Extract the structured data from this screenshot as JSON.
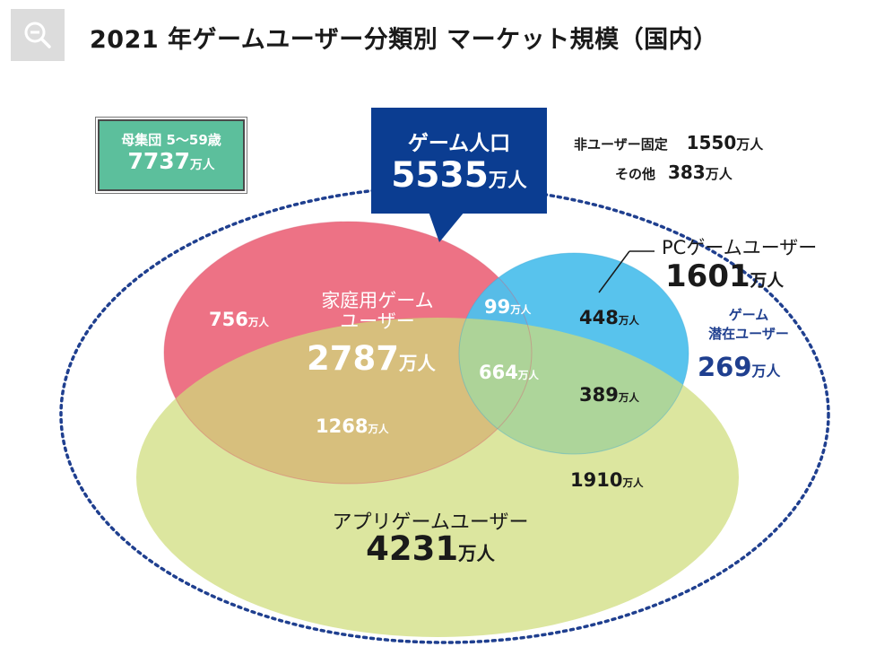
{
  "title": "2021 年ゲームユーザー分類別 マーケット規模（国内）",
  "toolbar": {
    "zoom_icon": "zoom-out-icon"
  },
  "colors": {
    "console": "#ec6a7e",
    "pc": "#4fc0ec",
    "app": "#cfdc7a",
    "population_box": "#5cbf9c",
    "game_population_box": "#0b3d91",
    "dotted_outline": "#1f3f8f"
  },
  "population": {
    "label": "母集団 5～59歳",
    "value": "7737",
    "unit": "万人"
  },
  "game_population": {
    "label": "ゲーム人口",
    "value": "5535",
    "unit": "万人"
  },
  "non_user": {
    "label": "非ユーザー固定",
    "value": "1550",
    "unit": "万人"
  },
  "other": {
    "label": "その他",
    "value": "383",
    "unit": "万人"
  },
  "pc_users": {
    "label": "PCゲームユーザー",
    "value": "1601",
    "unit": "万人"
  },
  "potential": {
    "label_line1": "ゲーム",
    "label_line2": "潜在ユーザー",
    "value": "269",
    "unit": "万人"
  },
  "console_users": {
    "label_line1": "家庭用ゲーム",
    "label_line2": "ユーザー",
    "value": "2787",
    "unit": "万人"
  },
  "app_users": {
    "label": "アプリゲームユーザー",
    "value": "4231",
    "unit": "万人"
  },
  "segments": {
    "console_only": {
      "value": "756",
      "unit": "万人"
    },
    "console_pc": {
      "value": "99",
      "unit": "万人"
    },
    "pc_only": {
      "value": "448",
      "unit": "万人"
    },
    "all_three": {
      "value": "664",
      "unit": "万人"
    },
    "pc_app": {
      "value": "389",
      "unit": "万人"
    },
    "console_app": {
      "value": "1268",
      "unit": "万人"
    },
    "app_only": {
      "value": "1910",
      "unit": "万人"
    }
  }
}
